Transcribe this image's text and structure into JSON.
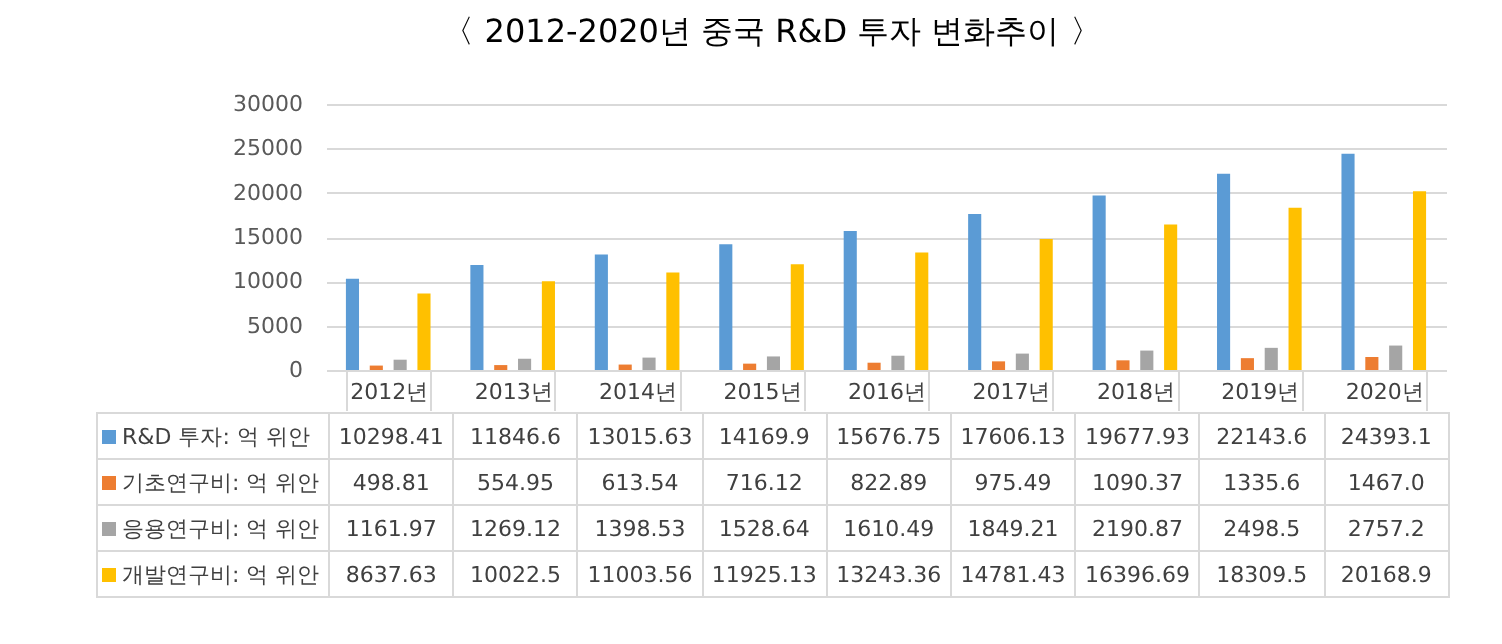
{
  "chart_data": {
    "type": "bar",
    "title": "〈 2012-2020년 중국 R&D 투자 변화추이 〉",
    "categories": [
      "2012년",
      "2013년",
      "2014년",
      "2015년",
      "2016년",
      "2017년",
      "2018년",
      "2019년",
      "2020년"
    ],
    "series": [
      {
        "name": "R&D 투자: 억 위안",
        "color": "#5b9bd5",
        "values": [
          10298.41,
          11846.6,
          13015.63,
          14169.9,
          15676.75,
          17606.13,
          19677.93,
          22143.6,
          24393.1
        ],
        "value_labels": [
          "10298.41",
          "11846.6",
          "13015.63",
          "14169.9",
          "15676.75",
          "17606.13",
          "19677.93",
          "22143.6",
          "24393.1"
        ]
      },
      {
        "name": "기초연구비: 억 위안",
        "color": "#ed7d31",
        "values": [
          498.81,
          554.95,
          613.54,
          716.12,
          822.89,
          975.49,
          1090.37,
          1335.6,
          1467.0
        ],
        "value_labels": [
          "498.81",
          "554.95",
          "613.54",
          "716.12",
          "822.89",
          "975.49",
          "1090.37",
          "1335.6",
          "1467.0"
        ]
      },
      {
        "name": "응용연구비: 억 위안",
        "color": "#a5a5a5",
        "values": [
          1161.97,
          1269.12,
          1398.53,
          1528.64,
          1610.49,
          1849.21,
          2190.87,
          2498.5,
          2757.2
        ],
        "value_labels": [
          "1161.97",
          "1269.12",
          "1398.53",
          "1528.64",
          "1610.49",
          "1849.21",
          "2190.87",
          "2498.5",
          "2757.2"
        ]
      },
      {
        "name": "개발연구비: 억 위안",
        "color": "#ffc000",
        "values": [
          8637.63,
          10022.5,
          11003.56,
          11925.13,
          13243.36,
          14781.43,
          16396.69,
          18309.5,
          20168.9
        ],
        "value_labels": [
          "8637.63",
          "10022.5",
          "11003.56",
          "11925.13",
          "13243.36",
          "14781.43",
          "16396.69",
          "18309.5",
          "20168.9"
        ]
      }
    ],
    "ylim": [
      0,
      30000
    ],
    "yticks": [
      0,
      5000,
      10000,
      15000,
      20000,
      25000,
      30000
    ],
    "grid": "y",
    "legend": "bottom"
  }
}
